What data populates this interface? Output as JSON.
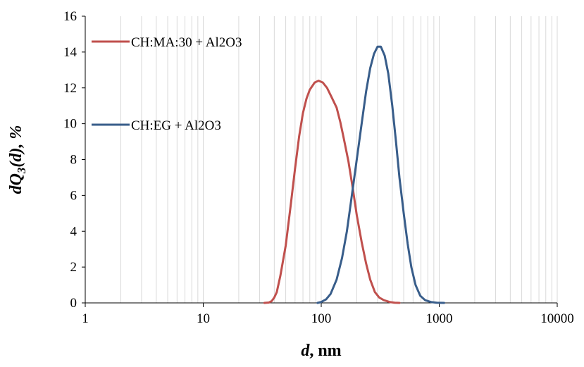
{
  "chart_data": {
    "type": "line",
    "x_scale": "log",
    "xlim": [
      1,
      10000
    ],
    "ylim": [
      0,
      16
    ],
    "x_ticks": [
      "1",
      "10",
      "100",
      "1000",
      "10000"
    ],
    "y_ticks": [
      "0",
      "2",
      "4",
      "6",
      "8",
      "10",
      "12",
      "14",
      "16"
    ],
    "grid": {
      "x_major": true,
      "x_minor": true,
      "y": false
    },
    "legend_position": "top-left",
    "xlabel": {
      "var": "d",
      "rest": ", nm"
    },
    "ylabel": {
      "pre": "dQ",
      "sub": "3",
      "post": "(d), %"
    },
    "series": [
      {
        "name": "CH:MA:30 + Al2O3",
        "color": "#c0504d",
        "points": [
          [
            33,
            0
          ],
          [
            36,
            0.02
          ],
          [
            38,
            0.1
          ],
          [
            40,
            0.3
          ],
          [
            42,
            0.6
          ],
          [
            45,
            1.5
          ],
          [
            50,
            3.2
          ],
          [
            55,
            5.4
          ],
          [
            60,
            7.5
          ],
          [
            65,
            9.3
          ],
          [
            70,
            10.6
          ],
          [
            75,
            11.4
          ],
          [
            80,
            11.9
          ],
          [
            88,
            12.3
          ],
          [
            95,
            12.4
          ],
          [
            103,
            12.3
          ],
          [
            112,
            12.0
          ],
          [
            122,
            11.5
          ],
          [
            135,
            10.9
          ],
          [
            145,
            10.1
          ],
          [
            155,
            9.2
          ],
          [
            170,
            7.9
          ],
          [
            185,
            6.4
          ],
          [
            200,
            4.9
          ],
          [
            220,
            3.4
          ],
          [
            240,
            2.2
          ],
          [
            260,
            1.3
          ],
          [
            285,
            0.6
          ],
          [
            310,
            0.3
          ],
          [
            340,
            0.15
          ],
          [
            380,
            0.05
          ],
          [
            420,
            0.01
          ],
          [
            460,
            0
          ]
        ]
      },
      {
        "name": "CH:EG + Al2O3",
        "color": "#385d8a",
        "points": [
          [
            93,
            0
          ],
          [
            100,
            0.05
          ],
          [
            110,
            0.2
          ],
          [
            120,
            0.5
          ],
          [
            135,
            1.3
          ],
          [
            150,
            2.5
          ],
          [
            165,
            4.0
          ],
          [
            180,
            5.8
          ],
          [
            200,
            8.0
          ],
          [
            220,
            10.0
          ],
          [
            240,
            11.8
          ],
          [
            260,
            13.1
          ],
          [
            280,
            13.9
          ],
          [
            300,
            14.3
          ],
          [
            320,
            14.3
          ],
          [
            345,
            13.8
          ],
          [
            370,
            12.8
          ],
          [
            400,
            11.0
          ],
          [
            430,
            9.0
          ],
          [
            460,
            7.0
          ],
          [
            500,
            5.0
          ],
          [
            540,
            3.3
          ],
          [
            580,
            2.0
          ],
          [
            630,
            1.0
          ],
          [
            690,
            0.4
          ],
          [
            760,
            0.15
          ],
          [
            850,
            0.05
          ],
          [
            950,
            0.01
          ],
          [
            1100,
            0
          ]
        ]
      }
    ]
  }
}
